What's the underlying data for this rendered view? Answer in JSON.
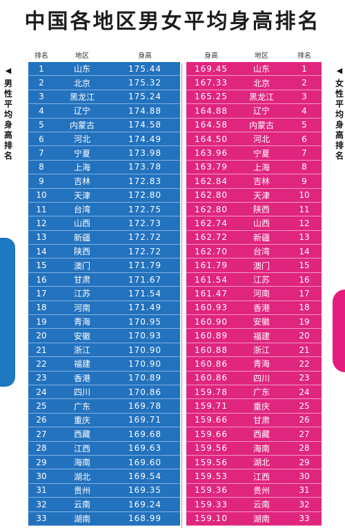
{
  "title": "中国各地区男女平均身高排名",
  "side_left": "男性平均身高排名",
  "side_right": "女性平均身高排名",
  "male_headers": {
    "rank": "排名",
    "region": "地区",
    "height": "身高"
  },
  "female_headers": {
    "height": "身高",
    "region": "地区",
    "rank": "排名"
  },
  "colors": {
    "male": "#2372be",
    "female": "#e0257f"
  },
  "male": [
    {
      "rank": "1",
      "region": "山东",
      "height": "175.44"
    },
    {
      "rank": "2",
      "region": "北京",
      "height": "175.32"
    },
    {
      "rank": "3",
      "region": "黑龙江",
      "height": "175.24"
    },
    {
      "rank": "4",
      "region": "辽宁",
      "height": "174.88"
    },
    {
      "rank": "5",
      "region": "内蒙古",
      "height": "174.58"
    },
    {
      "rank": "6",
      "region": "河北",
      "height": "174.49"
    },
    {
      "rank": "7",
      "region": "宁夏",
      "height": "173.98"
    },
    {
      "rank": "8",
      "region": "上海",
      "height": "173.78"
    },
    {
      "rank": "9",
      "region": "吉林",
      "height": "172.83"
    },
    {
      "rank": "10",
      "region": "天津",
      "height": "172.80"
    },
    {
      "rank": "11",
      "region": "台湾",
      "height": "172.75"
    },
    {
      "rank": "12",
      "region": "山西",
      "height": "172.73"
    },
    {
      "rank": "13",
      "region": "新疆",
      "height": "172.72"
    },
    {
      "rank": "14",
      "region": "陕西",
      "height": "172.72"
    },
    {
      "rank": "15",
      "region": "澳门",
      "height": "171.79"
    },
    {
      "rank": "16",
      "region": "甘肃",
      "height": "171.67"
    },
    {
      "rank": "17",
      "region": "江苏",
      "height": "171.54"
    },
    {
      "rank": "18",
      "region": "河南",
      "height": "171.49"
    },
    {
      "rank": "19",
      "region": "青海",
      "height": "170.95"
    },
    {
      "rank": "20",
      "region": "安徽",
      "height": "170.93"
    },
    {
      "rank": "21",
      "region": "浙江",
      "height": "170.90"
    },
    {
      "rank": "22",
      "region": "福建",
      "height": "170.90"
    },
    {
      "rank": "23",
      "region": "香港",
      "height": "170.89"
    },
    {
      "rank": "24",
      "region": "四川",
      "height": "170.86"
    },
    {
      "rank": "25",
      "region": "广东",
      "height": "169.78"
    },
    {
      "rank": "26",
      "region": "重庆",
      "height": "169.71"
    },
    {
      "rank": "27",
      "region": "西藏",
      "height": "169.68"
    },
    {
      "rank": "28",
      "region": "江西",
      "height": "169.63"
    },
    {
      "rank": "29",
      "region": "海南",
      "height": "169.60"
    },
    {
      "rank": "30",
      "region": "湖北",
      "height": "169.54"
    },
    {
      "rank": "31",
      "region": "贵州",
      "height": "169.35"
    },
    {
      "rank": "32",
      "region": "云南",
      "height": "169.24"
    },
    {
      "rank": "33",
      "region": "湖南",
      "height": "168.99"
    }
  ],
  "female": [
    {
      "height": "169.45",
      "region": "山东",
      "rank": "1"
    },
    {
      "height": "167.33",
      "region": "北京",
      "rank": "2"
    },
    {
      "height": "165.25",
      "region": "黑龙江",
      "rank": "3"
    },
    {
      "height": "164.88",
      "region": "辽宁",
      "rank": "4"
    },
    {
      "height": "164.58",
      "region": "内蒙古",
      "rank": "5"
    },
    {
      "height": "164.50",
      "region": "河北",
      "rank": "6"
    },
    {
      "height": "163.96",
      "region": "宁夏",
      "rank": "7"
    },
    {
      "height": "163.79",
      "region": "上海",
      "rank": "8"
    },
    {
      "height": "162.84",
      "region": "吉林",
      "rank": "9"
    },
    {
      "height": "162.80",
      "region": "天津",
      "rank": "10"
    },
    {
      "height": "162.80",
      "region": "陕西",
      "rank": "11"
    },
    {
      "height": "162.74",
      "region": "山西",
      "rank": "12"
    },
    {
      "height": "162.72",
      "region": "新疆",
      "rank": "13"
    },
    {
      "height": "162.70",
      "region": "台湾",
      "rank": "14"
    },
    {
      "height": "161.79",
      "region": "澳门",
      "rank": "15"
    },
    {
      "height": "161.54",
      "region": "江苏",
      "rank": "16"
    },
    {
      "height": "161.47",
      "region": "河南",
      "rank": "17"
    },
    {
      "height": "160.93",
      "region": "香港",
      "rank": "18"
    },
    {
      "height": "160.90",
      "region": "安徽",
      "rank": "19"
    },
    {
      "height": "160.89",
      "region": "福建",
      "rank": "20"
    },
    {
      "height": "160.88",
      "region": "浙江",
      "rank": "21"
    },
    {
      "height": "160.86",
      "region": "青海",
      "rank": "22"
    },
    {
      "height": "160.86",
      "region": "四川",
      "rank": "23"
    },
    {
      "height": "159.78",
      "region": "广东",
      "rank": "24"
    },
    {
      "height": "159.71",
      "region": "重庆",
      "rank": "25"
    },
    {
      "height": "159.66",
      "region": "甘肃",
      "rank": "26"
    },
    {
      "height": "159.66",
      "region": "西藏",
      "rank": "27"
    },
    {
      "height": "159.56",
      "region": "海南",
      "rank": "28"
    },
    {
      "height": "159.56",
      "region": "湖北",
      "rank": "29"
    },
    {
      "height": "159.53",
      "region": "江西",
      "rank": "30"
    },
    {
      "height": "159.36",
      "region": "贵州",
      "rank": "31"
    },
    {
      "height": "159.33",
      "region": "云南",
      "rank": "32"
    },
    {
      "height": "159.10",
      "region": "湖南",
      "rank": "33"
    }
  ]
}
